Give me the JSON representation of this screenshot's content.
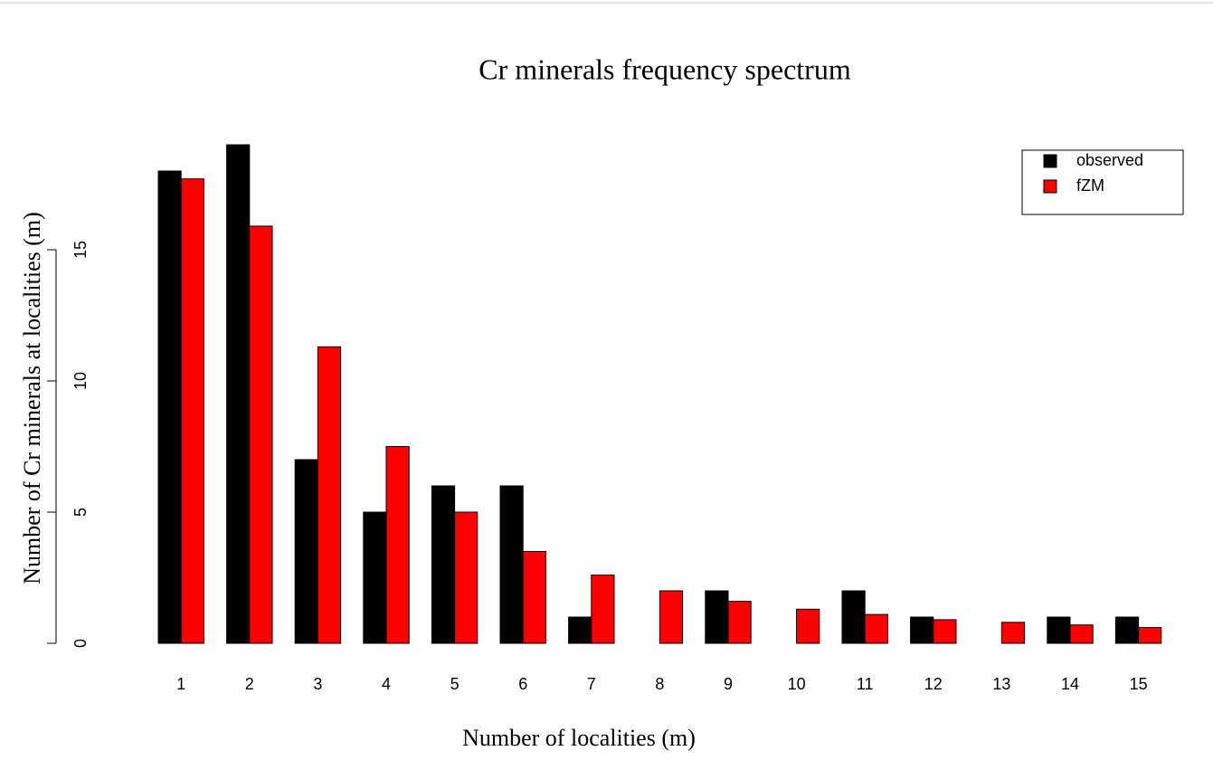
{
  "chart_data": {
    "type": "bar",
    "title": "Cr minerals frequency spectrum",
    "x_label": "Number of localities (m)",
    "y_label": "Number of Cr minerals at localities (m)",
    "categories": [
      "1",
      "2",
      "3",
      "4",
      "5",
      "6",
      "7",
      "8",
      "9",
      "10",
      "11",
      "12",
      "13",
      "14",
      "15"
    ],
    "series": [
      {
        "name": "observed",
        "color": "#000000",
        "values": [
          18,
          19,
          7,
          5,
          6,
          6,
          1,
          0,
          2,
          0,
          2,
          1,
          0,
          1,
          1
        ]
      },
      {
        "name": "fZM",
        "color": "#ff0000",
        "values": [
          17.7,
          15.9,
          11.3,
          7.5,
          5.0,
          3.5,
          2.6,
          2.0,
          1.6,
          1.3,
          1.1,
          0.9,
          0.8,
          0.7,
          0.6
        ]
      }
    ],
    "ylim": [
      0,
      19
    ],
    "yticks": [
      0,
      5,
      10,
      15
    ],
    "legend": "top-right"
  }
}
